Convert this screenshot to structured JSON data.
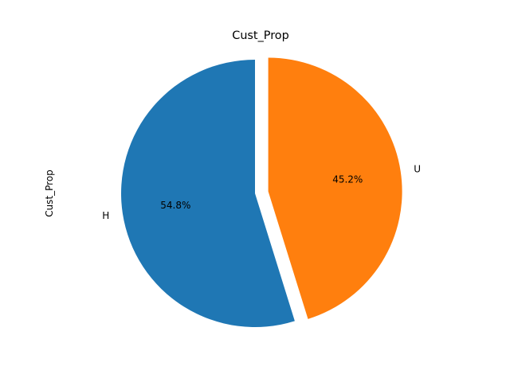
{
  "chart_data": {
    "type": "pie",
    "title": "Cust_Prop",
    "ylabel": "Cust_Prop",
    "labels": [
      "H",
      "U"
    ],
    "values": [
      54.8,
      45.2
    ],
    "value_labels": [
      "54.8%",
      "45.2%"
    ],
    "colors": [
      "#1f77b4",
      "#ff7f0e"
    ],
    "start_angle_deg": 90,
    "direction": "counterclockwise",
    "explode": [
      0,
      0.1
    ],
    "legend": false
  }
}
